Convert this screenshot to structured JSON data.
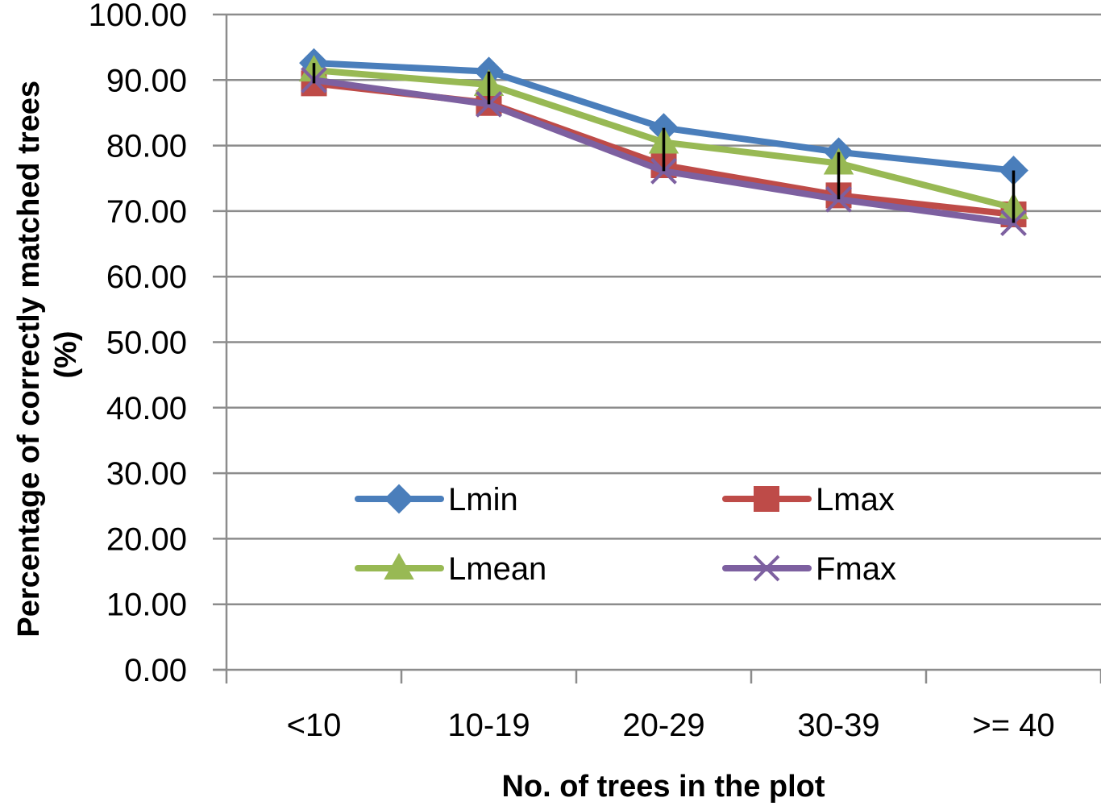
{
  "chart_data": {
    "type": "line",
    "title": "",
    "xlabel": "No. of trees in the plot",
    "ylabel_lines": [
      "Percentage of correctly matched trees",
      "(%)"
    ],
    "categories": [
      "<10",
      "10-19",
      "20-29",
      "30-39",
      ">= 40"
    ],
    "ylim": [
      0,
      100
    ],
    "yticks": [
      "0.00",
      "10.00",
      "20.00",
      "30.00",
      "40.00",
      "50.00",
      "60.00",
      "70.00",
      "80.00",
      "90.00",
      "100.00"
    ],
    "grid": true,
    "legend_position": "lower-center",
    "series": [
      {
        "name": "Lmin",
        "marker": "diamond",
        "color": "#4A7EBB",
        "values": [
          92.6,
          91.3,
          82.7,
          79.0,
          76.2
        ]
      },
      {
        "name": "Lmax",
        "marker": "square",
        "color": "#BE4B48",
        "values": [
          89.5,
          86.5,
          77.0,
          72.4,
          69.5
        ]
      },
      {
        "name": "Lmean",
        "marker": "triangle",
        "color": "#98B954",
        "values": [
          91.5,
          89.3,
          80.5,
          77.3,
          70.5
        ]
      },
      {
        "name": "Fmax",
        "marker": "x",
        "color": "#7D60A0",
        "values": [
          90.0,
          86.3,
          76.1,
          71.8,
          68.2
        ]
      }
    ],
    "error_bars": {
      "color": "#000000",
      "ranges": [
        [
          89.5,
          92.6
        ],
        [
          86.3,
          91.3
        ],
        [
          76.1,
          82.7
        ],
        [
          71.8,
          79.0
        ],
        [
          68.2,
          76.2
        ]
      ]
    }
  }
}
